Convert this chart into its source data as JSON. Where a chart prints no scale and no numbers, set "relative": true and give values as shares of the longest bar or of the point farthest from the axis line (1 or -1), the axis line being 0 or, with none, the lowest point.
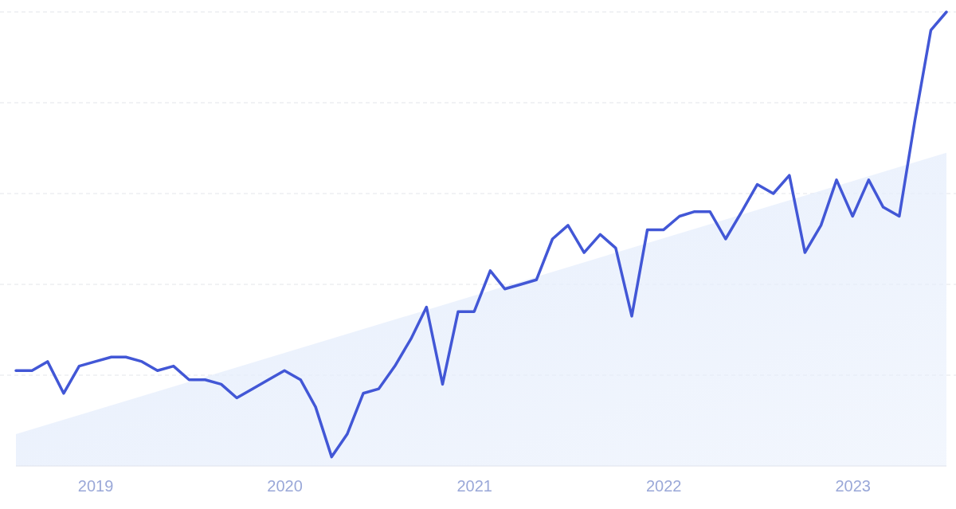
{
  "chart_data": {
    "type": "line",
    "relative": true,
    "grid": "y",
    "marker": "none",
    "line_style": "solid",
    "x": [
      "2018-08",
      "2018-09",
      "2018-10",
      "2018-11",
      "2018-12",
      "2019-01",
      "2019-02",
      "2019-03",
      "2019-04",
      "2019-05",
      "2019-06",
      "2019-07",
      "2019-08",
      "2019-09",
      "2019-10",
      "2019-11",
      "2019-12",
      "2020-01",
      "2020-02",
      "2020-03",
      "2020-04",
      "2020-05",
      "2020-06",
      "2020-07",
      "2020-08",
      "2020-09",
      "2020-10",
      "2020-11",
      "2020-12",
      "2021-01",
      "2021-02",
      "2021-03",
      "2021-04",
      "2021-05",
      "2021-06",
      "2021-07",
      "2021-08",
      "2021-09",
      "2021-10",
      "2021-11",
      "2021-12",
      "2022-01",
      "2022-02",
      "2022-03",
      "2022-04",
      "2022-05",
      "2022-06",
      "2022-07",
      "2022-08",
      "2022-09",
      "2022-10",
      "2022-11",
      "2022-12",
      "2023-01",
      "2023-02",
      "2023-03",
      "2023-04",
      "2023-05",
      "2023-06",
      "2023-07"
    ],
    "xlim": [
      "2018-08",
      "2023-07"
    ],
    "xticks": [
      {
        "value": "2019-01",
        "label": "2019"
      },
      {
        "value": "2020-01",
        "label": "2020"
      },
      {
        "value": "2021-01",
        "label": "2021"
      },
      {
        "value": "2022-01",
        "label": "2022"
      },
      {
        "value": "2023-01",
        "label": "2023"
      }
    ],
    "series": [
      {
        "type": "area",
        "color": "#e6eefc",
        "x": [
          "2018-08",
          "2023-07"
        ],
        "values": [
          0.07,
          0.69
        ]
      },
      {
        "color": "#4257d6",
        "values": [
          0.21,
          0.21,
          0.23,
          0.16,
          0.22,
          0.23,
          0.24,
          0.24,
          0.23,
          0.21,
          0.22,
          0.19,
          0.19,
          0.18,
          0.15,
          0.17,
          0.19,
          0.21,
          0.19,
          0.13,
          0.02,
          0.07,
          0.16,
          0.17,
          0.22,
          0.28,
          0.35,
          0.18,
          0.34,
          0.34,
          0.43,
          0.39,
          0.4,
          0.41,
          0.5,
          0.53,
          0.47,
          0.51,
          0.48,
          0.33,
          0.52,
          0.52,
          0.55,
          0.56,
          0.56,
          0.5,
          0.56,
          0.62,
          0.6,
          0.64,
          0.47,
          0.53,
          0.63,
          0.55,
          0.63,
          0.57,
          0.55,
          0.76,
          0.96,
          1
        ]
      }
    ]
  }
}
